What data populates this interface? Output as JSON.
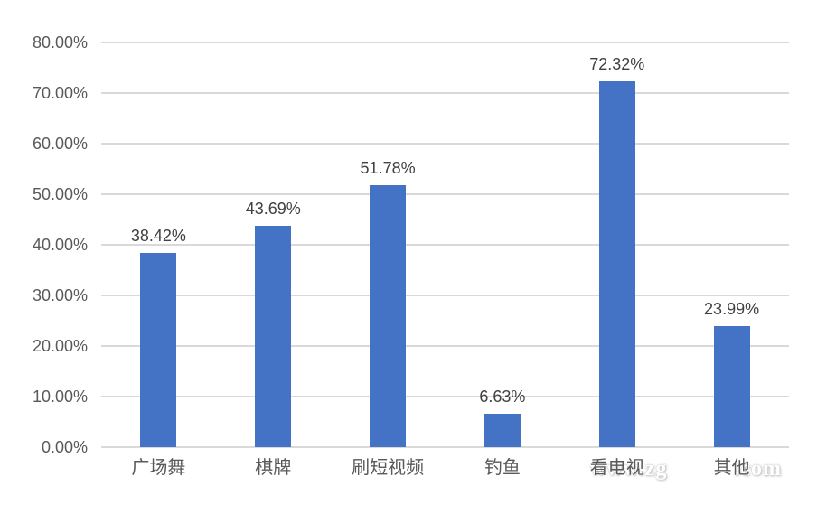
{
  "chart_data": {
    "type": "bar",
    "categories": [
      "广场舞",
      "棋牌",
      "刷短视频",
      "钓鱼",
      "看电视",
      "其他"
    ],
    "values": [
      38.42,
      43.69,
      51.78,
      6.63,
      72.32,
      23.99
    ],
    "value_labels": [
      "38.42%",
      "43.69%",
      "51.78%",
      "6.63%",
      "72.32%",
      "23.99%"
    ],
    "title": "",
    "xlabel": "",
    "ylabel": "",
    "ylim": [
      0,
      80
    ],
    "ytick_step": 10,
    "ytick_labels": [
      "0.00%",
      "10.00%",
      "20.00%",
      "30.00%",
      "40.00%",
      "50.00%",
      "60.00%",
      "70.00%",
      "80.00%"
    ],
    "grid": true,
    "legend": "none",
    "bar_color": "#4472C4"
  },
  "watermark": {
    "prefix": "www.zg",
    "suffix": ".com"
  },
  "colors": {
    "bar": "#4472C4",
    "gridline": "#D9D9D9",
    "tick_text": "#595959",
    "value_label_text": "#404040",
    "background": "#FFFFFF"
  }
}
